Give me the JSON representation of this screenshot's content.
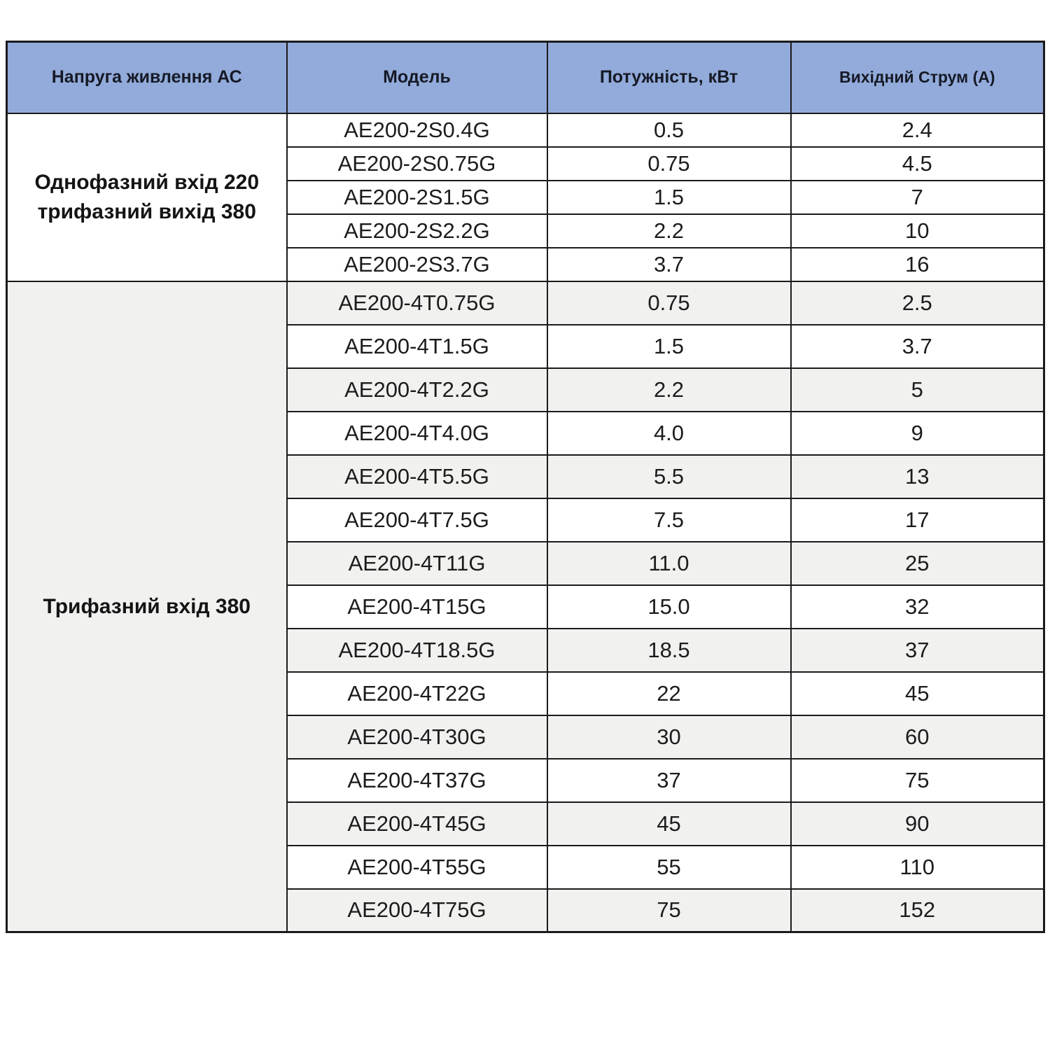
{
  "colors": {
    "header_bg": "#92abda",
    "alt_row_bg": "#f1f1f0",
    "border": "#1b1b1b",
    "header_text": "#161a26",
    "body_text": "#1c1c1c"
  },
  "table": {
    "columns": [
      "Напруга живлення АС",
      "Модель",
      "Потужність, кВт",
      "Вихідний Струм (А)"
    ],
    "groups": [
      {
        "label": "Однофазний вхід 220 трифазний вихід 380",
        "label_lines": [
          "Однофазний вхід 220",
          "трифазний вихід 380"
        ],
        "row_style": "plain",
        "rows": [
          {
            "model": "AE200-2S0.4G",
            "power_kw": "0.5",
            "current_a": "2.4"
          },
          {
            "model": "AE200-2S0.75G",
            "power_kw": "0.75",
            "current_a": "4.5"
          },
          {
            "model": "AE200-2S1.5G",
            "power_kw": "1.5",
            "current_a": "7"
          },
          {
            "model": "AE200-2S2.2G",
            "power_kw": "2.2",
            "current_a": "10"
          },
          {
            "model": "AE200-2S3.7G",
            "power_kw": "3.7",
            "current_a": "16"
          }
        ]
      },
      {
        "label": "Трифазний вхід 380",
        "label_lines": [
          "Трифазний вхід 380"
        ],
        "row_style": "striped",
        "rows": [
          {
            "model": "AE200-4T0.75G",
            "power_kw": "0.75",
            "current_a": "2.5"
          },
          {
            "model": "AE200-4T1.5G",
            "power_kw": "1.5",
            "current_a": "3.7"
          },
          {
            "model": "AE200-4T2.2G",
            "power_kw": "2.2",
            "current_a": "5"
          },
          {
            "model": "AE200-4T4.0G",
            "power_kw": "4.0",
            "current_a": "9"
          },
          {
            "model": "AE200-4T5.5G",
            "power_kw": "5.5",
            "current_a": "13"
          },
          {
            "model": "AE200-4T7.5G",
            "power_kw": "7.5",
            "current_a": "17"
          },
          {
            "model": "AE200-4T11G",
            "power_kw": "11.0",
            "current_a": "25"
          },
          {
            "model": "AE200-4T15G",
            "power_kw": "15.0",
            "current_a": "32"
          },
          {
            "model": "AE200-4T18.5G",
            "power_kw": "18.5",
            "current_a": "37"
          },
          {
            "model": "AE200-4T22G",
            "power_kw": "22",
            "current_a": "45"
          },
          {
            "model": "AE200-4T30G",
            "power_kw": "30",
            "current_a": "60"
          },
          {
            "model": "AE200-4T37G",
            "power_kw": "37",
            "current_a": "75"
          },
          {
            "model": "AE200-4T45G",
            "power_kw": "45",
            "current_a": "90"
          },
          {
            "model": "AE200-4T55G",
            "power_kw": "55",
            "current_a": "110"
          },
          {
            "model": "AE200-4T75G",
            "power_kw": "75",
            "current_a": "152"
          }
        ]
      }
    ]
  }
}
